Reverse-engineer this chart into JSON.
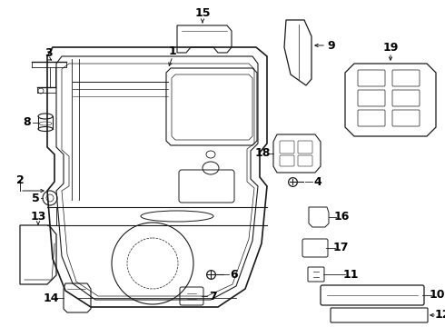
{
  "bg_color": "#ffffff",
  "line_color": "#1a1a1a",
  "text_color": "#000000"
}
